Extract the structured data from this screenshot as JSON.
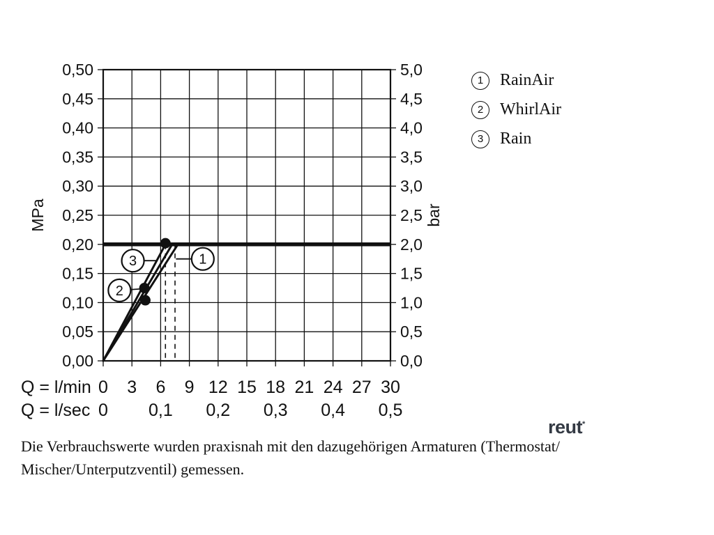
{
  "chart_data": {
    "type": "line",
    "title": "",
    "x_axis": {
      "range": [
        0,
        30
      ],
      "row1_label": "Q = l/min",
      "row1_ticks": [
        0,
        3,
        6,
        9,
        12,
        15,
        18,
        21,
        24,
        27,
        30
      ],
      "row2_label": "Q = l/sec",
      "row2_ticks": [
        {
          "label": "0",
          "at": 0
        },
        {
          "label": "0,1",
          "at": 6
        },
        {
          "label": "0,2",
          "at": 12
        },
        {
          "label": "0,3",
          "at": 18
        },
        {
          "label": "0,4",
          "at": 24
        },
        {
          "label": "0,5",
          "at": 30
        }
      ]
    },
    "y_axis_left": {
      "label": "MPa",
      "range": [
        0,
        0.5
      ],
      "ticks": [
        "0,00",
        "0,05",
        "0,10",
        "0,15",
        "0,20",
        "0,25",
        "0,30",
        "0,35",
        "0,40",
        "0,45",
        "0,50"
      ]
    },
    "y_axis_right": {
      "label": "bar",
      "ticks": [
        "0,0",
        "0,5",
        "1,0",
        "1,5",
        "2,0",
        "2,5",
        "3,0",
        "3,5",
        "4,0",
        "4,5",
        "5,0"
      ]
    },
    "grid": {
      "x_step": 3,
      "y_step": 0.05,
      "on": true
    },
    "reference_line_y": 0.2,
    "series": [
      {
        "id": "1",
        "name": "RainAir",
        "points": [
          [
            0,
            0
          ],
          [
            7.2,
            0.2
          ]
        ]
      },
      {
        "id": "2",
        "name": "WhirlAir",
        "points": [
          [
            0,
            0
          ],
          [
            7.8,
            0.2
          ]
        ]
      },
      {
        "id": "3",
        "name": "Rain",
        "points": [
          [
            0,
            0
          ],
          [
            6.5,
            0.2
          ]
        ]
      }
    ],
    "markers": [
      [
        6.5,
        0.202
      ],
      [
        4.3,
        0.125
      ],
      [
        4.4,
        0.104
      ]
    ],
    "dashed_lines_x": [
      6.5,
      7.5
    ],
    "callouts": [
      {
        "id": "1",
        "x": 10.4,
        "y": 0.175,
        "to_x": 7.6,
        "to_y": 0.175
      },
      {
        "id": "2",
        "x": 1.7,
        "y": 0.121,
        "to_x": 4.3,
        "to_y": 0.124
      },
      {
        "id": "3",
        "x": 3.1,
        "y": 0.172,
        "to_x": 5.6,
        "to_y": 0.172
      }
    ],
    "line_color": "#111111",
    "legend_position": "right"
  },
  "legend": {
    "items": [
      {
        "num": "1",
        "label": "RainAir"
      },
      {
        "num": "2",
        "label": "WhirlAir"
      },
      {
        "num": "3",
        "label": "Rain"
      }
    ]
  },
  "caption_lines": [
    "Die Verbrauchswerte wurden praxisnah mit den dazugehörigen Armaturen (Thermostat/",
    "Mischer/Unterputzventil) gemessen."
  ],
  "logo": {
    "text": "reut",
    "mark": "*"
  }
}
